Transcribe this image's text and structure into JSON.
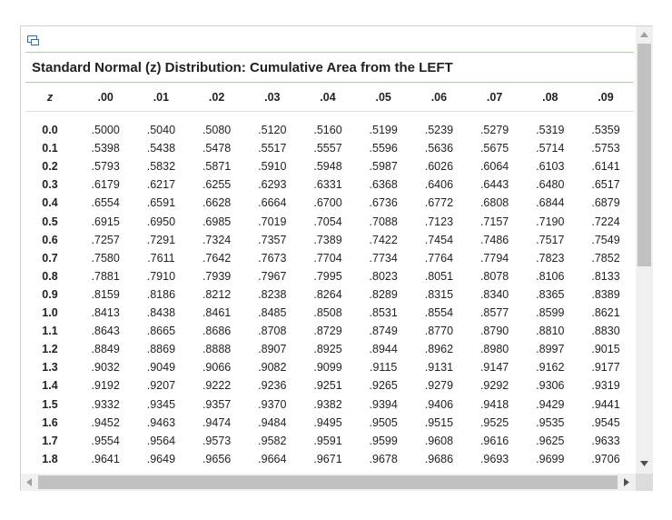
{
  "title": "Standard Normal (z) Distribution: Cumulative Area from the LEFT",
  "table": {
    "header": [
      "z",
      ".00",
      ".01",
      ".02",
      ".03",
      ".04",
      ".05",
      ".06",
      ".07",
      ".08",
      ".09"
    ],
    "rows": [
      [
        "0.0",
        ".5000",
        ".5040",
        ".5080",
        ".5120",
        ".5160",
        ".5199",
        ".5239",
        ".5279",
        ".5319",
        ".5359"
      ],
      [
        "0.1",
        ".5398",
        ".5438",
        ".5478",
        ".5517",
        ".5557",
        ".5596",
        ".5636",
        ".5675",
        ".5714",
        ".5753"
      ],
      [
        "0.2",
        ".5793",
        ".5832",
        ".5871",
        ".5910",
        ".5948",
        ".5987",
        ".6026",
        ".6064",
        ".6103",
        ".6141"
      ],
      [
        "0.3",
        ".6179",
        ".6217",
        ".6255",
        ".6293",
        ".6331",
        ".6368",
        ".6406",
        ".6443",
        ".6480",
        ".6517"
      ],
      [
        "0.4",
        ".6554",
        ".6591",
        ".6628",
        ".6664",
        ".6700",
        ".6736",
        ".6772",
        ".6808",
        ".6844",
        ".6879"
      ],
      [
        "0.5",
        ".6915",
        ".6950",
        ".6985",
        ".7019",
        ".7054",
        ".7088",
        ".7123",
        ".7157",
        ".7190",
        ".7224"
      ],
      [
        "0.6",
        ".7257",
        ".7291",
        ".7324",
        ".7357",
        ".7389",
        ".7422",
        ".7454",
        ".7486",
        ".7517",
        ".7549"
      ],
      [
        "0.7",
        ".7580",
        ".7611",
        ".7642",
        ".7673",
        ".7704",
        ".7734",
        ".7764",
        ".7794",
        ".7823",
        ".7852"
      ],
      [
        "0.8",
        ".7881",
        ".7910",
        ".7939",
        ".7967",
        ".7995",
        ".8023",
        ".8051",
        ".8078",
        ".8106",
        ".8133"
      ],
      [
        "0.9",
        ".8159",
        ".8186",
        ".8212",
        ".8238",
        ".8264",
        ".8289",
        ".8315",
        ".8340",
        ".8365",
        ".8389"
      ],
      [
        "1.0",
        ".8413",
        ".8438",
        ".8461",
        ".8485",
        ".8508",
        ".8531",
        ".8554",
        ".8577",
        ".8599",
        ".8621"
      ],
      [
        "1.1",
        ".8643",
        ".8665",
        ".8686",
        ".8708",
        ".8729",
        ".8749",
        ".8770",
        ".8790",
        ".8810",
        ".8830"
      ],
      [
        "1.2",
        ".8849",
        ".8869",
        ".8888",
        ".8907",
        ".8925",
        ".8944",
        ".8962",
        ".8980",
        ".8997",
        ".9015"
      ],
      [
        "1.3",
        ".9032",
        ".9049",
        ".9066",
        ".9082",
        ".9099",
        ".9115",
        ".9131",
        ".9147",
        ".9162",
        ".9177"
      ],
      [
        "1.4",
        ".9192",
        ".9207",
        ".9222",
        ".9236",
        ".9251",
        ".9265",
        ".9279",
        ".9292",
        ".9306",
        ".9319"
      ],
      [
        "1.5",
        ".9332",
        ".9345",
        ".9357",
        ".9370",
        ".9382",
        ".9394",
        ".9406",
        ".9418",
        ".9429",
        ".9441"
      ],
      [
        "1.6",
        ".9452",
        ".9463",
        ".9474",
        ".9484",
        ".9495",
        ".9505",
        ".9515",
        ".9525",
        ".9535",
        ".9545"
      ],
      [
        "1.7",
        ".9554",
        ".9564",
        ".9573",
        ".9582",
        ".9591",
        ".9599",
        ".9608",
        ".9616",
        ".9625",
        ".9633"
      ],
      [
        "1.8",
        ".9641",
        ".9649",
        ".9656",
        ".9664",
        ".9671",
        ".9678",
        ".9686",
        ".9693",
        ".9699",
        ".9706"
      ]
    ]
  }
}
